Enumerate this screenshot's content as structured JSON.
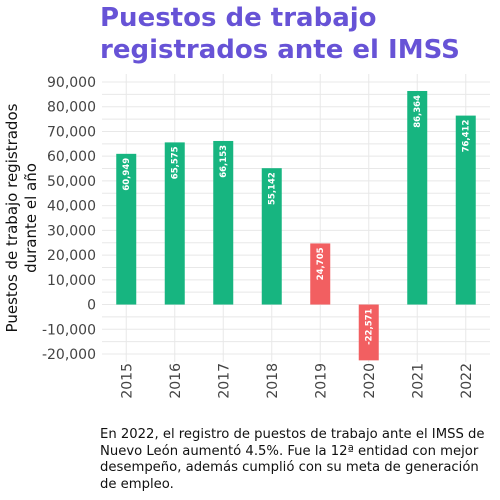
{
  "title_line1": "Puestos de trabajo",
  "title_line2": "registrados ante el IMSS",
  "caption": "En 2022, el registro de puestos de trabajo ante el IMSS de Nuevo León aumentó 4.5%. Fue la 12ª entidad con mejor desempeño, además cumplió con su meta de generación de empleo.",
  "colors": {
    "title": "#6753d6",
    "positive": "#17b580",
    "highlight": "#f25f61"
  },
  "chart_data": {
    "type": "bar",
    "categories": [
      "2015",
      "2016",
      "2017",
      "2018",
      "2019",
      "2020",
      "2021",
      "2022"
    ],
    "values": [
      60949,
      65575,
      66153,
      55142,
      24705,
      -22571,
      86364,
      76412
    ],
    "data_labels": [
      "60,949",
      "65,575",
      "66,153",
      "55,142",
      "24,705",
      "-22,571",
      "86,364",
      "76,412"
    ],
    "highlighted_categories": [
      "2019",
      "2020"
    ],
    "title": "Puestos de trabajo registrados ante el IMSS",
    "ylabel_lines": [
      "Puestos de trabajo registrados",
      "durante el año"
    ],
    "xlabel": "",
    "ylim": [
      -20000,
      90000
    ],
    "yticks": [
      90000,
      80000,
      70000,
      60000,
      50000,
      40000,
      30000,
      20000,
      10000,
      0,
      -10000,
      -20000
    ],
    "ytick_labels": [
      "90,000",
      "80,000",
      "70,000",
      "60,000",
      "50,000",
      "40,000",
      "30,000",
      "20,000",
      "10,000",
      "0",
      "-10,000",
      "-20,000"
    ],
    "grid": true,
    "legend": "none"
  }
}
